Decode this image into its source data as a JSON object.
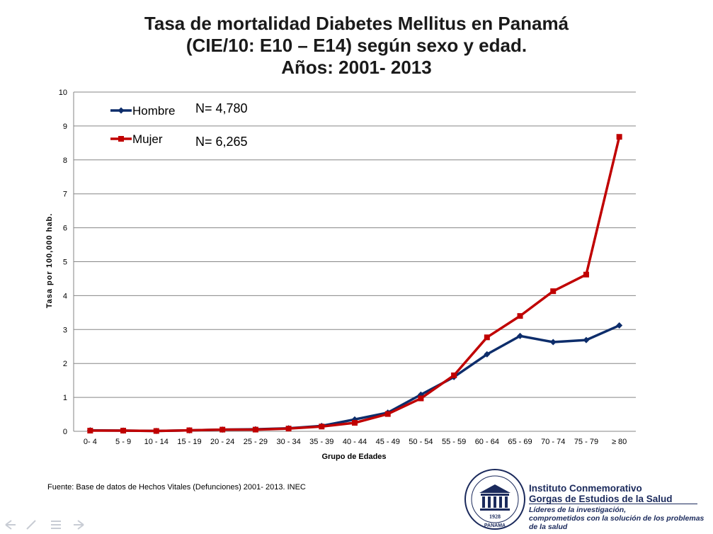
{
  "title": {
    "line1": "Tasa de mortalidad Diabetes Mellitus en Panamá",
    "line2": "(CIE/10: E10 – E14) según sexo y edad.",
    "line3": "Años: 2001- 2013"
  },
  "chart_data": {
    "type": "line",
    "title": "Tasa de mortalidad Diabetes Mellitus en Panamá (CIE/10: E10 – E14) según sexo y edad. Años: 2001- 2013",
    "xlabel": "Grupo de Edades",
    "ylabel": "Tasa por 100,000 hab.",
    "ylim": [
      0,
      10
    ],
    "yticks": [
      "0",
      "1",
      "2",
      "3",
      "4",
      "5",
      "6",
      "7",
      "8",
      "9",
      "10"
    ],
    "grid": true,
    "legend_position": "top-left",
    "categories": [
      "0- 4",
      "5 - 9",
      "10 - 14",
      "15 - 19",
      "20 - 24",
      "25 - 29",
      "30 - 34",
      "35 - 39",
      "40 - 44",
      "45 - 49",
      "50 - 54",
      "55 - 59",
      "60 - 64",
      "65 - 69",
      "70 - 74",
      "75 - 79",
      "≥ 80"
    ],
    "series": [
      {
        "name": "Hombre",
        "color": "#0d2d6b",
        "marker": "diamond",
        "values": [
          0.03,
          0.02,
          0.01,
          0.03,
          0.05,
          0.06,
          0.09,
          0.16,
          0.35,
          0.55,
          1.08,
          1.6,
          2.27,
          2.81,
          2.63,
          2.69,
          3.12
        ]
      },
      {
        "name": "Mujer",
        "color": "#c00000",
        "marker": "square",
        "values": [
          0.02,
          0.02,
          0.01,
          0.03,
          0.05,
          0.05,
          0.08,
          0.14,
          0.25,
          0.51,
          0.97,
          1.65,
          2.77,
          3.4,
          4.13,
          4.62,
          8.68
        ]
      }
    ],
    "annotations": [
      "N= 4,780",
      "N= 6,265"
    ]
  },
  "source": "Fuente: Base de datos de Hechos Vitales (Defunciones) 2001- 2013. INEC",
  "logo": {
    "name_line1": "Instituto Conmemorativo",
    "name_line2": "Gorgas de Estudios de la Salud",
    "tagline_line1": "Líderes de la investigación,",
    "tagline_line2": "comprometidos con la solución de los problemas de la salud",
    "seal_year": "1928",
    "seal_text": "PANAMA",
    "seal_icon": "building-seal-icon",
    "color": "#1b2a5c"
  },
  "nav_icons": [
    "back-arrow-icon",
    "pen-icon",
    "menu-icon",
    "forward-arrow-icon"
  ]
}
